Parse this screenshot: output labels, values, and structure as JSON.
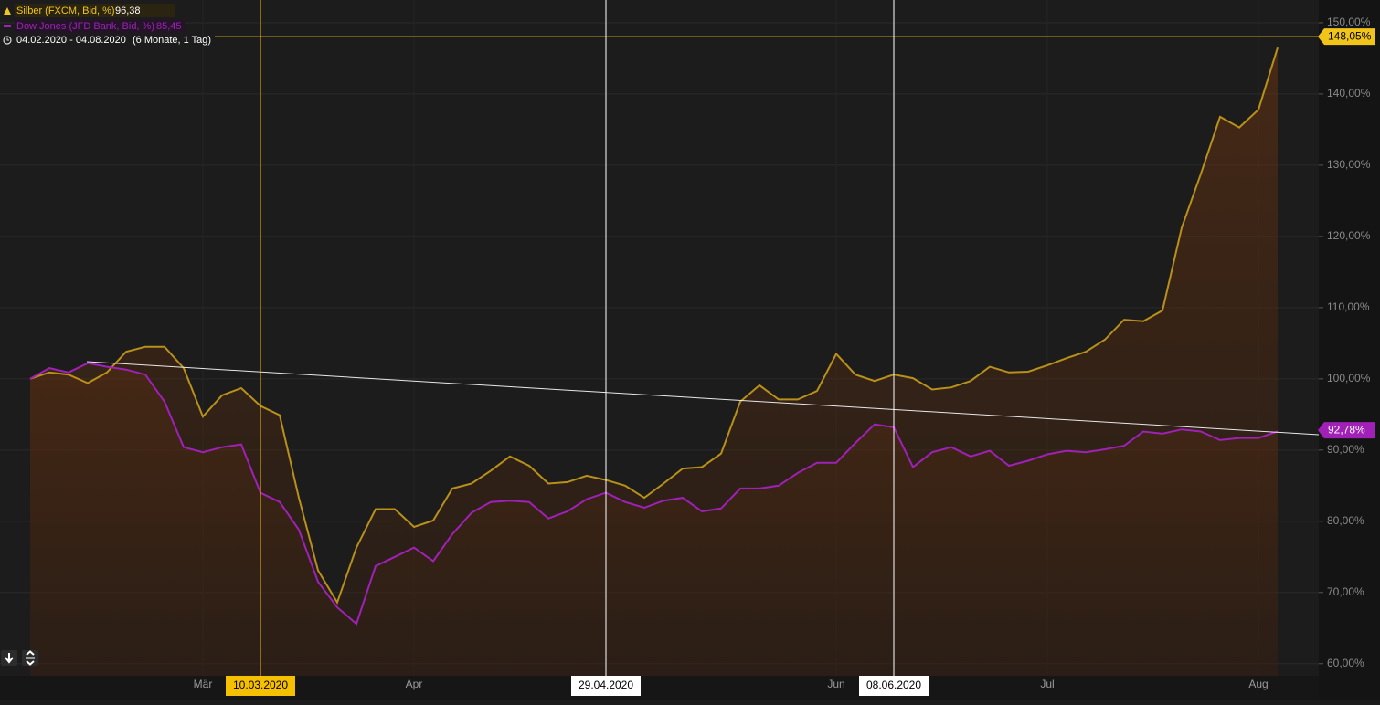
{
  "chart_data": {
    "type": "line",
    "date_range": "04.02.2020 - 04.08.2020",
    "period": "(6 Monate, 1 Tag)",
    "categories": [
      null,
      null,
      null,
      null,
      null,
      null,
      null,
      null,
      null,
      "Mär",
      null,
      null,
      null,
      null,
      null,
      null,
      null,
      null,
      null,
      null,
      "Apr",
      null,
      null,
      null,
      null,
      null,
      null,
      null,
      null,
      null,
      null,
      null,
      null,
      null,
      null,
      null,
      null,
      null,
      null,
      null,
      null,
      null,
      "Jun",
      null,
      null,
      null,
      null,
      null,
      null,
      null,
      null,
      null,
      null,
      "Jul",
      null,
      null,
      null,
      null,
      null,
      null,
      null,
      null,
      null,
      null,
      "Aug",
      null
    ],
    "series": [
      {
        "name": "Silber (FXCM, Bid, %)",
        "color": "#b8901a",
        "label_color": "#f0c419",
        "legend_value": {
          "value": 96.38,
          "label": "96,38"
        },
        "last": {
          "value": 148.05,
          "label": "148,05%"
        },
        "values": [
          100,
          100.9,
          100.6,
          99.4,
          100.9,
          103.8,
          104.5,
          104.5,
          101.5,
          94.7,
          97.7,
          98.7,
          96.2,
          94.9,
          83.3,
          73.1,
          68.6,
          76.3,
          81.7,
          81.7,
          79.2,
          80.1,
          84.6,
          85.3,
          87.1,
          89.1,
          87.8,
          85.3,
          85.5,
          86.4,
          85.8,
          85.0,
          83.3,
          85.3,
          87.4,
          87.6,
          89.5,
          96.8,
          99.1,
          97.1,
          97.1,
          98.3,
          103.5,
          100.6,
          99.7,
          100.6,
          100.1,
          98.5,
          98.8,
          99.7,
          101.7,
          100.9,
          101.0,
          101.9,
          102.9,
          103.8,
          105.5,
          108.3,
          108.1,
          109.6,
          121.2,
          128.8,
          136.8,
          135.3,
          137.8,
          146.5
        ]
      },
      {
        "name": "Dow Jones (JFD Bank, Bid, %)",
        "color": "#a020b8",
        "label_color": "#a020b8",
        "legend_value": {
          "value": 85.45,
          "label": "85,45"
        },
        "last": {
          "value": 92.78,
          "label": "92,78%"
        },
        "values": [
          100,
          101.5,
          100.9,
          102.2,
          101.7,
          101.3,
          100.6,
          96.8,
          90.4,
          89.7,
          90.4,
          90.8,
          84.0,
          82.7,
          78.8,
          71.5,
          67.9,
          65.6,
          73.7,
          75.0,
          76.3,
          74.4,
          78.2,
          81.2,
          82.7,
          82.9,
          82.7,
          80.4,
          81.4,
          83.1,
          84.0,
          82.7,
          81.9,
          82.9,
          83.3,
          81.4,
          81.8,
          84.6,
          84.6,
          85.0,
          86.8,
          88.2,
          88.2,
          91.0,
          93.6,
          93.2,
          87.6,
          89.7,
          90.4,
          89.1,
          89.9,
          87.8,
          88.5,
          89.4,
          89.9,
          89.7,
          90.1,
          90.6,
          92.6,
          92.3,
          92.9,
          92.6,
          91.4,
          91.7,
          91.7,
          92.6
        ]
      }
    ],
    "markers": [
      {
        "index": 12,
        "label": "10.03.2020",
        "color": "#f5c000"
      },
      {
        "index": 30,
        "label": "29.04.2020",
        "color": "#ffffff"
      },
      {
        "index": 45,
        "label": "08.06.2020",
        "color": "#ffffff"
      }
    ],
    "ylim": [
      58.3,
      153.2
    ],
    "yticks": [
      {
        "value": 60,
        "label": "60,00%"
      },
      {
        "value": 70,
        "label": "70,00%"
      },
      {
        "value": 80,
        "label": "80,00%"
      },
      {
        "value": 90,
        "label": "90,00%"
      },
      {
        "value": 100,
        "label": "100,00%"
      },
      {
        "value": 110,
        "label": "110,00%"
      },
      {
        "value": 120,
        "label": "120,00%"
      },
      {
        "value": 130,
        "label": "130,00%"
      },
      {
        "value": 140,
        "label": "140,00%"
      },
      {
        "value": 150,
        "label": "150,00%"
      }
    ],
    "grid": true
  }
}
